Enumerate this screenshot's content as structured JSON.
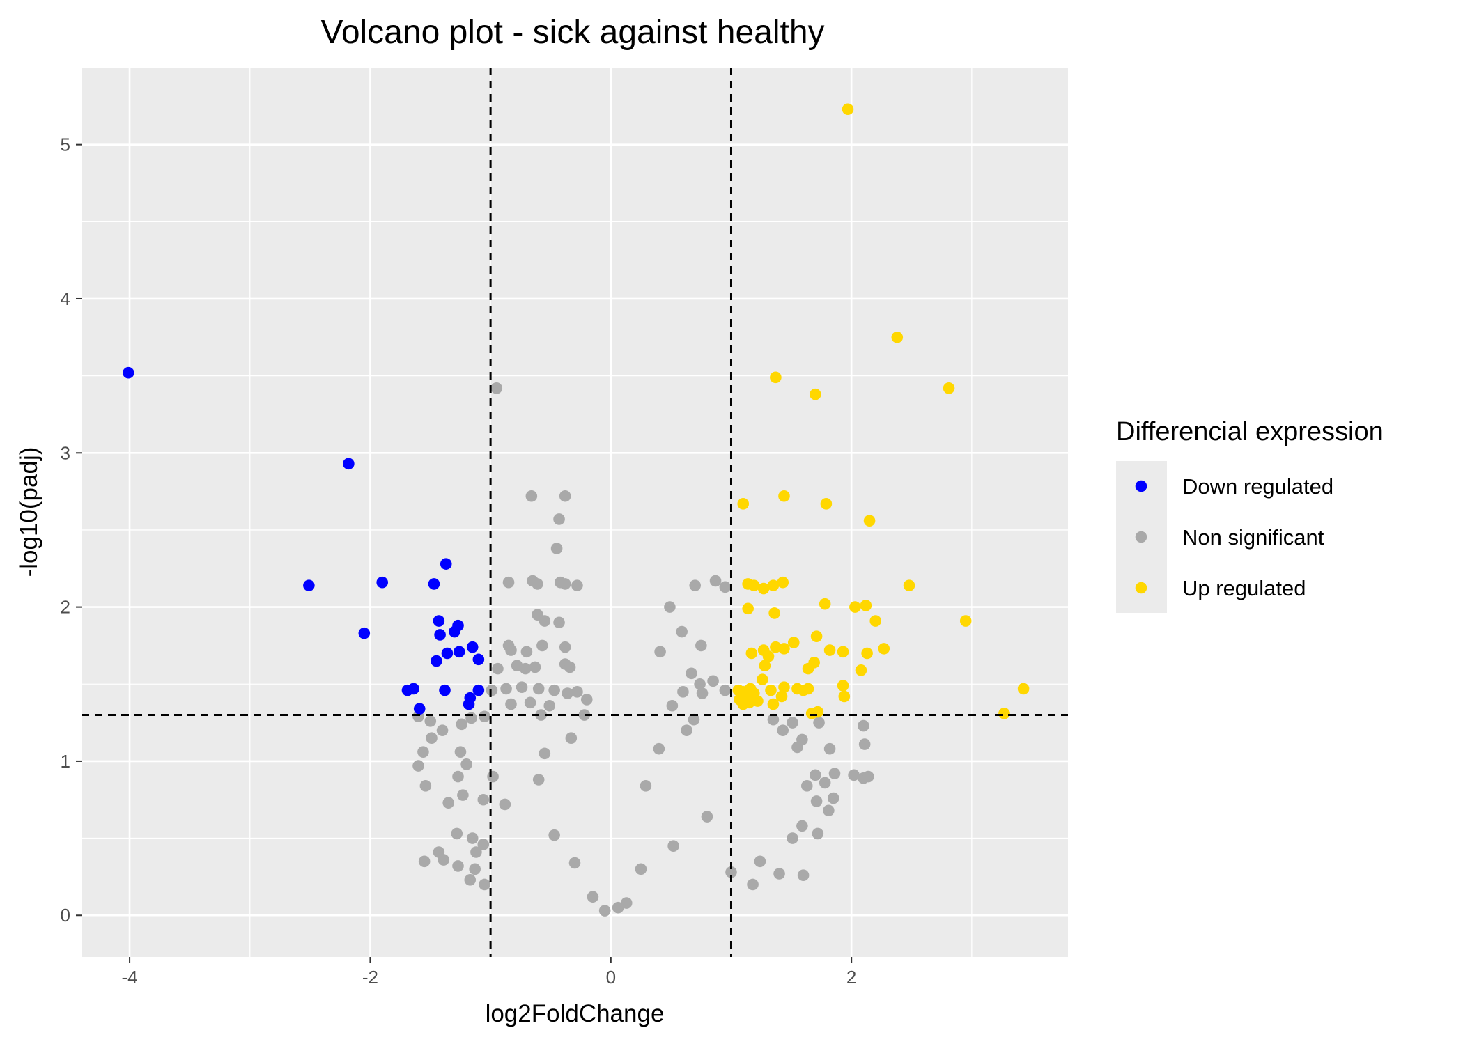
{
  "chart_data": {
    "type": "scatter",
    "title": "Volcano plot - sick against healthy",
    "xlabel": "log2FoldChange",
    "ylabel": "-log10(padj)",
    "xlim": [
      -4.4,
      3.8
    ],
    "ylim": [
      -0.27,
      5.5
    ],
    "x_ticks": [
      -4,
      -2,
      0,
      2
    ],
    "y_ticks": [
      0,
      1,
      2,
      3,
      4,
      5
    ],
    "grid": true,
    "panel_background": "#ebebeb",
    "thresholds": {
      "x": [
        -1,
        1
      ],
      "y": 1.3,
      "line_style": "dashed"
    },
    "legend": {
      "title": "Differencial expression",
      "placement": "right",
      "entries": [
        {
          "name": "Down regulated",
          "color": "#0000ff"
        },
        {
          "name": "Non significant",
          "color": "#a9a9a9"
        },
        {
          "name": "Up regulated",
          "color": "#ffd700"
        }
      ]
    },
    "series": [
      {
        "name": "Down regulated",
        "color": "#0000ff",
        "points": [
          [
            -4.01,
            3.52
          ],
          [
            -2.18,
            2.93
          ],
          [
            -2.51,
            2.14
          ],
          [
            -1.9,
            2.16
          ],
          [
            -2.05,
            1.83
          ],
          [
            -1.47,
            2.15
          ],
          [
            -1.37,
            2.28
          ],
          [
            -1.43,
            1.91
          ],
          [
            -1.42,
            1.82
          ],
          [
            -1.3,
            1.84
          ],
          [
            -1.27,
            1.88
          ],
          [
            -1.26,
            1.71
          ],
          [
            -1.36,
            1.7
          ],
          [
            -1.15,
            1.74
          ],
          [
            -1.45,
            1.65
          ],
          [
            -1.1,
            1.66
          ],
          [
            -1.69,
            1.46
          ],
          [
            -1.64,
            1.47
          ],
          [
            -1.38,
            1.46
          ],
          [
            -1.1,
            1.46
          ],
          [
            -1.59,
            1.34
          ],
          [
            -1.17,
            1.41
          ],
          [
            -1.18,
            1.37
          ]
        ]
      },
      {
        "name": "Up regulated",
        "color": "#ffd700",
        "points": [
          [
            1.97,
            5.23
          ],
          [
            2.38,
            3.75
          ],
          [
            2.81,
            3.42
          ],
          [
            1.37,
            3.49
          ],
          [
            1.7,
            3.38
          ],
          [
            1.44,
            2.72
          ],
          [
            1.1,
            2.67
          ],
          [
            1.79,
            2.67
          ],
          [
            2.15,
            2.56
          ],
          [
            2.48,
            2.14
          ],
          [
            1.14,
            2.15
          ],
          [
            1.19,
            2.14
          ],
          [
            1.27,
            2.12
          ],
          [
            1.35,
            2.14
          ],
          [
            1.43,
            2.16
          ],
          [
            1.14,
            1.99
          ],
          [
            1.36,
            1.96
          ],
          [
            1.78,
            2.02
          ],
          [
            2.03,
            2.0
          ],
          [
            2.12,
            2.01
          ],
          [
            2.2,
            1.91
          ],
          [
            2.95,
            1.91
          ],
          [
            1.17,
            1.7
          ],
          [
            1.27,
            1.72
          ],
          [
            1.31,
            1.68
          ],
          [
            1.37,
            1.74
          ],
          [
            1.44,
            1.73
          ],
          [
            1.52,
            1.77
          ],
          [
            1.71,
            1.81
          ],
          [
            1.82,
            1.72
          ],
          [
            1.93,
            1.71
          ],
          [
            2.13,
            1.7
          ],
          [
            2.27,
            1.73
          ],
          [
            1.28,
            1.62
          ],
          [
            1.64,
            1.6
          ],
          [
            1.69,
            1.64
          ],
          [
            2.08,
            1.59
          ],
          [
            1.06,
            1.46
          ],
          [
            1.1,
            1.45
          ],
          [
            1.13,
            1.43
          ],
          [
            1.16,
            1.47
          ],
          [
            1.19,
            1.44
          ],
          [
            1.22,
            1.39
          ],
          [
            1.26,
            1.53
          ],
          [
            1.33,
            1.46
          ],
          [
            1.44,
            1.48
          ],
          [
            1.55,
            1.47
          ],
          [
            1.6,
            1.46
          ],
          [
            1.64,
            1.47
          ],
          [
            1.07,
            1.4
          ],
          [
            1.1,
            1.37
          ],
          [
            1.15,
            1.38
          ],
          [
            1.35,
            1.37
          ],
          [
            1.42,
            1.42
          ],
          [
            1.67,
            1.31
          ],
          [
            1.72,
            1.32
          ],
          [
            1.93,
            1.49
          ],
          [
            1.94,
            1.42
          ],
          [
            3.27,
            1.31
          ],
          [
            3.43,
            1.47
          ]
        ]
      },
      {
        "name": "Non significant",
        "color": "#a9a9a9",
        "points": [
          [
            -0.95,
            3.42
          ],
          [
            -0.66,
            2.72
          ],
          [
            -0.38,
            2.72
          ],
          [
            -0.43,
            2.57
          ],
          [
            -0.45,
            2.38
          ],
          [
            -0.85,
            2.16
          ],
          [
            -0.65,
            2.17
          ],
          [
            -0.61,
            2.15
          ],
          [
            -0.42,
            2.16
          ],
          [
            -0.38,
            2.15
          ],
          [
            -0.28,
            2.14
          ],
          [
            -0.61,
            1.95
          ],
          [
            -0.55,
            1.91
          ],
          [
            -0.43,
            1.9
          ],
          [
            -0.85,
            1.75
          ],
          [
            -0.83,
            1.72
          ],
          [
            -0.7,
            1.71
          ],
          [
            -0.57,
            1.75
          ],
          [
            -0.38,
            1.74
          ],
          [
            -0.94,
            1.6
          ],
          [
            -0.78,
            1.62
          ],
          [
            -0.71,
            1.6
          ],
          [
            -0.63,
            1.61
          ],
          [
            -0.38,
            1.63
          ],
          [
            -0.34,
            1.61
          ],
          [
            -0.99,
            1.46
          ],
          [
            -0.87,
            1.47
          ],
          [
            -0.74,
            1.48
          ],
          [
            -0.6,
            1.47
          ],
          [
            -0.47,
            1.46
          ],
          [
            -0.36,
            1.44
          ],
          [
            -0.28,
            1.45
          ],
          [
            -0.2,
            1.4
          ],
          [
            -0.83,
            1.37
          ],
          [
            -0.67,
            1.38
          ],
          [
            -0.51,
            1.36
          ],
          [
            -1.6,
            1.29
          ],
          [
            -1.5,
            1.26
          ],
          [
            -1.16,
            1.28
          ],
          [
            -1.05,
            1.29
          ],
          [
            -0.58,
            1.3
          ],
          [
            -0.22,
            1.3
          ],
          [
            -1.49,
            1.15
          ],
          [
            -1.4,
            1.2
          ],
          [
            -1.24,
            1.24
          ],
          [
            -1.56,
            1.06
          ],
          [
            -1.25,
            1.06
          ],
          [
            -1.2,
            0.98
          ],
          [
            -1.27,
            0.9
          ],
          [
            -0.98,
            0.9
          ],
          [
            -1.6,
            0.97
          ],
          [
            -1.54,
            0.84
          ],
          [
            -1.35,
            0.73
          ],
          [
            -1.23,
            0.78
          ],
          [
            -1.28,
            0.53
          ],
          [
            -1.15,
            0.5
          ],
          [
            -1.06,
            0.75
          ],
          [
            -1.06,
            0.46
          ],
          [
            -1.43,
            0.41
          ],
          [
            -1.12,
            0.41
          ],
          [
            -1.39,
            0.36
          ],
          [
            -1.55,
            0.35
          ],
          [
            -1.27,
            0.32
          ],
          [
            -1.13,
            0.3
          ],
          [
            -1.17,
            0.23
          ],
          [
            -1.05,
            0.2
          ],
          [
            0.49,
            2.0
          ],
          [
            0.59,
            1.84
          ],
          [
            0.75,
            1.75
          ],
          [
            0.41,
            1.71
          ],
          [
            0.7,
            2.14
          ],
          [
            0.87,
            2.17
          ],
          [
            0.95,
            2.13
          ],
          [
            0.67,
            1.57
          ],
          [
            0.76,
            1.44
          ],
          [
            0.74,
            1.5
          ],
          [
            0.6,
            1.45
          ],
          [
            0.51,
            1.36
          ],
          [
            0.85,
            1.52
          ],
          [
            0.95,
            1.46
          ],
          [
            0.69,
            1.27
          ],
          [
            1.35,
            1.27
          ],
          [
            1.43,
            1.2
          ],
          [
            1.51,
            1.25
          ],
          [
            1.73,
            1.25
          ],
          [
            1.55,
            1.09
          ],
          [
            1.59,
            1.14
          ],
          [
            1.82,
            1.08
          ],
          [
            2.11,
            1.11
          ],
          [
            2.1,
            1.23
          ],
          [
            1.86,
            0.92
          ],
          [
            1.7,
            0.91
          ],
          [
            1.63,
            0.84
          ],
          [
            1.71,
            0.74
          ],
          [
            1.78,
            0.86
          ],
          [
            1.85,
            0.76
          ],
          [
            2.02,
            0.91
          ],
          [
            2.1,
            0.89
          ],
          [
            2.14,
            0.9
          ],
          [
            1.81,
            0.68
          ],
          [
            1.59,
            0.58
          ],
          [
            1.72,
            0.53
          ],
          [
            1.51,
            0.5
          ],
          [
            1.4,
            0.27
          ],
          [
            1.6,
            0.26
          ],
          [
            1.24,
            0.35
          ],
          [
            1.0,
            0.28
          ],
          [
            1.18,
            0.2
          ],
          [
            -0.55,
            1.05
          ],
          [
            -0.33,
            1.15
          ],
          [
            0.4,
            1.08
          ],
          [
            0.63,
            1.2
          ],
          [
            0.29,
            0.84
          ],
          [
            -0.6,
            0.88
          ],
          [
            -0.88,
            0.72
          ],
          [
            -0.47,
            0.52
          ],
          [
            0.52,
            0.45
          ],
          [
            0.8,
            0.64
          ],
          [
            -0.3,
            0.34
          ],
          [
            0.25,
            0.3
          ],
          [
            -0.15,
            0.12
          ],
          [
            0.13,
            0.08
          ],
          [
            -0.05,
            0.03
          ],
          [
            0.06,
            0.05
          ]
        ]
      }
    ]
  }
}
